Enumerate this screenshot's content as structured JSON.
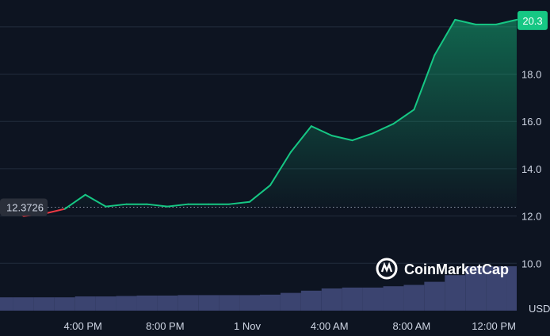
{
  "chart_data": {
    "type": "line",
    "x_tick_labels": [
      "4:00 PM",
      "8:00 PM",
      "1 Nov",
      "4:00 AM",
      "8:00 AM",
      "12:00 PM"
    ],
    "y_tick_labels": [
      "10.0",
      "12.0",
      "14.0",
      "16.0",
      "18.0"
    ],
    "ylim": [
      8.0,
      21.0
    ],
    "baseline_value": 12.3726,
    "baseline_label": "12.3726",
    "current_value": 20.3,
    "current_label": "20.3",
    "volume_axis_label": "USD",
    "watermark": "CoinMarketCap",
    "grid": true,
    "colors": {
      "up": "#16c784",
      "down": "#ea3943",
      "volume": "#3b4470",
      "background": "#0d1421",
      "grid": "#222c3c"
    },
    "series": [
      {
        "x": [
          "12:00 PM",
          "1:00 PM",
          "2:00 PM",
          "3:00 PM",
          "4:00 PM",
          "5:00 PM",
          "6:00 PM",
          "7:00 PM",
          "8:00 PM",
          "9:00 PM",
          "10:00 PM",
          "11:00 PM",
          "12:00 AM",
          "1:00 AM",
          "2:00 AM",
          "3:00 AM",
          "4:00 AM",
          "5:00 AM",
          "6:00 AM",
          "7:00 AM",
          "8:00 AM",
          "9:00 AM",
          "10:00 AM",
          "11:00 AM",
          "12:00 PM",
          "1:00 PM"
        ],
        "values": [
          12.4,
          12.0,
          12.1,
          12.3,
          12.9,
          12.4,
          12.5,
          12.5,
          12.4,
          12.5,
          12.5,
          12.5,
          12.6,
          13.3,
          14.7,
          15.8,
          15.4,
          15.2,
          15.5,
          15.9,
          16.5,
          18.8,
          20.3,
          20.1,
          20.1,
          20.3
        ]
      }
    ],
    "volume": [
      0.3,
      0.3,
      0.3,
      0.3,
      0.32,
      0.32,
      0.33,
      0.34,
      0.34,
      0.35,
      0.35,
      0.35,
      0.35,
      0.36,
      0.4,
      0.45,
      0.5,
      0.52,
      0.52,
      0.55,
      0.58,
      0.65,
      0.8,
      1.0,
      1.0,
      1.0
    ]
  }
}
